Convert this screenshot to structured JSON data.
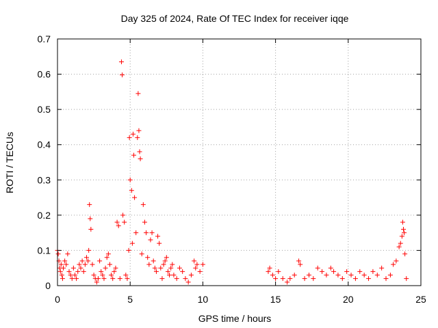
{
  "chart_data": {
    "type": "scatter",
    "title": "Day 325 of 2024, Rate Of TEC Index for receiver iqqe",
    "xlabel": "GPS time / hours",
    "ylabel": "ROTI / TECUs",
    "xlim": [
      0,
      25
    ],
    "ylim": [
      0,
      0.7
    ],
    "xticks": [
      0,
      5,
      10,
      15,
      20,
      25
    ],
    "xtick_labels": [
      "0",
      "5",
      "10",
      "15",
      "20",
      "25"
    ],
    "yticks": [
      0,
      0.1,
      0.2,
      0.3,
      0.4,
      0.5,
      0.6,
      0.7
    ],
    "ytick_labels": [
      "0",
      "0.1",
      "0.2",
      "0.3",
      "0.4",
      "0.5",
      "0.6",
      "0.7"
    ],
    "grid": true,
    "marker": "+",
    "marker_color": "#ff0000",
    "series": [
      {
        "x": [
          0.0,
          0.05,
          0.1,
          0.15,
          0.2,
          0.25,
          0.3,
          0.35,
          0.4,
          0.5,
          0.6,
          0.7,
          0.8,
          0.9,
          1.0,
          1.1,
          1.2,
          1.3,
          1.4,
          1.5,
          1.6,
          1.7,
          1.8,
          1.9,
          2.0,
          2.1,
          2.15,
          2.2,
          2.25,
          2.3,
          2.4,
          2.5,
          2.6,
          2.7,
          2.8,
          2.9,
          3.0,
          3.1,
          3.2,
          3.3,
          3.4,
          3.5,
          3.6,
          3.7,
          3.8,
          3.9,
          4.0,
          4.1,
          4.2,
          4.3,
          4.4,
          4.45,
          4.5,
          4.6,
          4.7,
          4.8,
          4.9,
          4.95,
          5.0,
          5.1,
          5.15,
          5.2,
          5.25,
          5.3,
          5.4,
          5.5,
          5.55,
          5.6,
          5.65,
          5.7,
          5.8,
          5.9,
          6.0,
          6.1,
          6.2,
          6.3,
          6.4,
          6.5,
          6.6,
          6.7,
          6.8,
          6.9,
          7.0,
          7.1,
          7.2,
          7.3,
          7.4,
          7.5,
          7.6,
          7.7,
          7.8,
          7.9,
          8.0,
          8.2,
          8.4,
          8.6,
          8.8,
          9.0,
          9.2,
          9.4,
          9.5,
          9.6,
          9.8,
          10.0,
          14.5,
          14.6,
          14.8,
          15.0,
          15.2,
          15.5,
          15.8,
          16.0,
          16.3,
          16.6,
          16.7,
          17.0,
          17.3,
          17.6,
          17.9,
          18.2,
          18.5,
          18.8,
          19.0,
          19.3,
          19.6,
          19.9,
          20.2,
          20.5,
          20.8,
          21.1,
          21.4,
          21.7,
          22.0,
          22.3,
          22.6,
          22.9,
          23.1,
          23.3,
          23.5,
          23.6,
          23.7,
          23.75,
          23.8,
          23.85,
          23.9,
          24.0
        ],
        "y": [
          0.1,
          0.09,
          0.07,
          0.05,
          0.04,
          0.06,
          0.03,
          0.02,
          0.05,
          0.07,
          0.06,
          0.09,
          0.04,
          0.03,
          0.02,
          0.05,
          0.03,
          0.02,
          0.04,
          0.06,
          0.05,
          0.07,
          0.04,
          0.06,
          0.08,
          0.07,
          0.1,
          0.23,
          0.19,
          0.16,
          0.06,
          0.03,
          0.02,
          0.01,
          0.02,
          0.07,
          0.04,
          0.03,
          0.02,
          0.05,
          0.08,
          0.09,
          0.06,
          0.03,
          0.02,
          0.04,
          0.05,
          0.18,
          0.17,
          0.02,
          0.635,
          0.598,
          0.2,
          0.18,
          0.03,
          0.02,
          0.1,
          0.42,
          0.3,
          0.27,
          0.12,
          0.43,
          0.37,
          0.25,
          0.15,
          0.42,
          0.545,
          0.44,
          0.38,
          0.36,
          0.09,
          0.23,
          0.18,
          0.15,
          0.08,
          0.06,
          0.13,
          0.15,
          0.07,
          0.05,
          0.04,
          0.14,
          0.12,
          0.05,
          0.02,
          0.06,
          0.07,
          0.08,
          0.04,
          0.03,
          0.05,
          0.06,
          0.03,
          0.02,
          0.05,
          0.04,
          0.02,
          0.01,
          0.03,
          0.07,
          0.05,
          0.06,
          0.04,
          0.06,
          0.04,
          0.05,
          0.03,
          0.02,
          0.04,
          0.02,
          0.01,
          0.02,
          0.03,
          0.07,
          0.06,
          0.02,
          0.03,
          0.02,
          0.05,
          0.04,
          0.03,
          0.05,
          0.04,
          0.03,
          0.02,
          0.04,
          0.03,
          0.02,
          0.04,
          0.03,
          0.02,
          0.04,
          0.03,
          0.05,
          0.02,
          0.03,
          0.06,
          0.07,
          0.11,
          0.12,
          0.14,
          0.18,
          0.16,
          0.15,
          0.09,
          0.02
        ]
      }
    ]
  }
}
